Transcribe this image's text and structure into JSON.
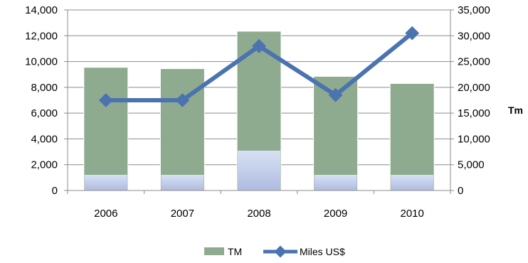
{
  "chart_data": {
    "type": "bar",
    "title": "",
    "categories": [
      "2006",
      "2007",
      "2008",
      "2009",
      "2010"
    ],
    "series": [
      {
        "name": "TM",
        "type": "bar",
        "axis": "left",
        "values": [
          9550,
          9450,
          12350,
          8850,
          8300
        ],
        "color": "#8fab8f"
      },
      {
        "name": "Miles US$",
        "type": "line",
        "axis": "right",
        "values": [
          17500,
          17500,
          28000,
          18500,
          30500
        ],
        "color": "#4a73b0"
      }
    ],
    "y_left": {
      "min": 0,
      "max": 14000,
      "step": 2000,
      "tick_labels": [
        "0",
        "2,000",
        "4,000",
        "6,000",
        "8,000",
        "10,000",
        "12,000",
        "14,000"
      ]
    },
    "y_right": {
      "label": "Tm",
      "min": 0,
      "max": 35000,
      "step": 5000,
      "tick_labels": [
        "0",
        "5,000",
        "10,000",
        "15,000",
        "20,000",
        "25,000",
        "30,000",
        "35,000"
      ]
    },
    "grid": true,
    "legend": {
      "position": "bottom",
      "entries": [
        "TM",
        "Miles US$"
      ]
    }
  }
}
